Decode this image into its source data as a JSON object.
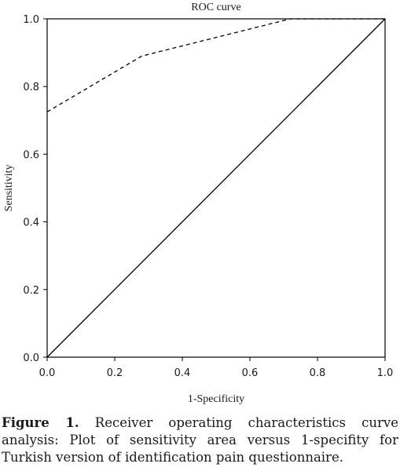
{
  "chart_data": {
    "type": "line",
    "title": "ROC curve",
    "xlabel": "1-Specificity",
    "ylabel": "Sensitivity",
    "xlim": [
      0.0,
      1.0
    ],
    "ylim": [
      0.0,
      1.0
    ],
    "x_ticks": [
      "0.0",
      "0.2",
      "0.4",
      "0.6",
      "0.8",
      "1.0"
    ],
    "y_ticks": [
      "0.0",
      "0.2",
      "0.4",
      "0.6",
      "0.8",
      "1.0"
    ],
    "series": [
      {
        "style": "dashed",
        "points": [
          [
            0.0,
            0.725
          ],
          [
            0.28,
            0.89
          ],
          [
            0.72,
            1.0
          ],
          [
            1.0,
            1.0
          ]
        ]
      },
      {
        "style": "solid",
        "points": [
          [
            0.0,
            0.0
          ],
          [
            1.0,
            1.0
          ]
        ]
      }
    ],
    "grid": false,
    "legend": "none"
  },
  "caption": {
    "label": "Figure 1.",
    "text": " Receiver operating characteristics curve analysis: Plot of sensitivity area versus 1-specifity for Turkish version of identification pain questionnaire."
  }
}
